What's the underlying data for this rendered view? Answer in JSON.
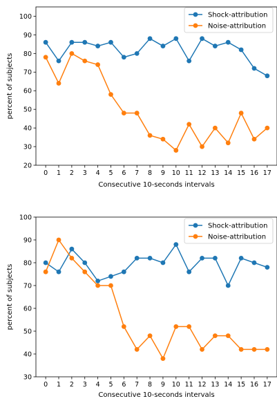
{
  "chart_data": [
    {
      "type": "line",
      "xlabel": "Consecutive 10-seconds intervals",
      "ylabel": "percent of subjects",
      "x": [
        0,
        1,
        2,
        3,
        4,
        5,
        6,
        7,
        8,
        9,
        10,
        11,
        12,
        13,
        14,
        15,
        16,
        17
      ],
      "ylim": [
        20,
        105
      ],
      "yticks": [
        20,
        30,
        40,
        50,
        60,
        70,
        80,
        90,
        100
      ],
      "grid": false,
      "legend_position": "top-right",
      "series": [
        {
          "name": "Shock-attribution",
          "color": "#1f77b4",
          "values": [
            86,
            76,
            86,
            86,
            84,
            86,
            78,
            80,
            88,
            84,
            88,
            76,
            88,
            84,
            86,
            82,
            72,
            68
          ]
        },
        {
          "name": "Noise-attribution",
          "color": "#ff7f0e",
          "values": [
            78,
            64,
            80,
            76,
            74,
            58,
            48,
            48,
            36,
            34,
            28,
            42,
            30,
            40,
            32,
            48,
            34,
            40
          ]
        }
      ]
    },
    {
      "type": "line",
      "xlabel": "Consecutive 10-seconds intervals",
      "ylabel": "percent of subjects",
      "x": [
        0,
        1,
        2,
        3,
        4,
        5,
        6,
        7,
        8,
        9,
        10,
        11,
        12,
        13,
        14,
        15,
        16,
        17
      ],
      "ylim": [
        30,
        100
      ],
      "yticks": [
        30,
        40,
        50,
        60,
        70,
        80,
        90,
        100
      ],
      "grid": false,
      "legend_position": "top-right",
      "series": [
        {
          "name": "Shock-attribution",
          "color": "#1f77b4",
          "values": [
            80,
            76,
            86,
            80,
            72,
            74,
            76,
            82,
            82,
            80,
            88,
            76,
            82,
            82,
            70,
            82,
            80,
            78
          ]
        },
        {
          "name": "Noise-attribution",
          "color": "#ff7f0e",
          "values": [
            76,
            90,
            82,
            76,
            70,
            70,
            52,
            42,
            48,
            38,
            52,
            52,
            42,
            48,
            48,
            42,
            42,
            42
          ]
        }
      ]
    }
  ]
}
